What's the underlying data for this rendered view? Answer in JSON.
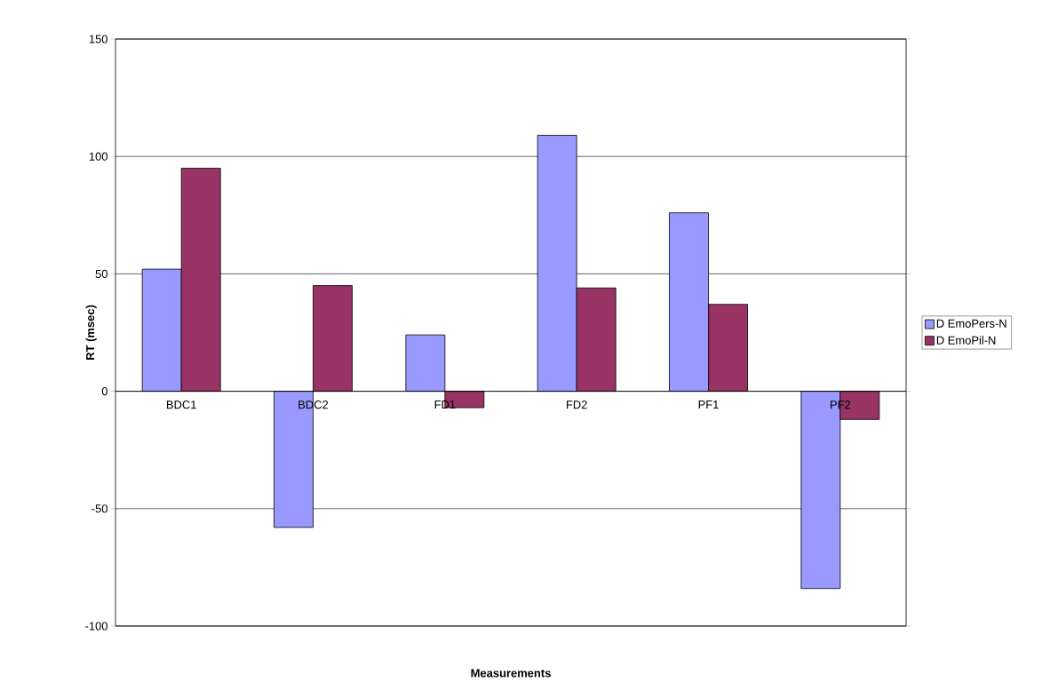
{
  "chart_data": {
    "type": "bar",
    "xlabel": "Measurements",
    "ylabel": "RT (msec)",
    "categories": [
      "BDC1",
      "BDC2",
      "FD1",
      "FD2",
      "PF1",
      "PF2"
    ],
    "series": [
      {
        "name": "D EmoPers-N",
        "color": "#9999ff",
        "values": [
          52,
          -58,
          24,
          109,
          76,
          -84
        ]
      },
      {
        "name": "D EmoPil-N",
        "color": "#993366",
        "values": [
          95,
          45,
          -7,
          44,
          37,
          -12
        ]
      }
    ],
    "ylim": [
      -100,
      150
    ],
    "yticks": [
      -100,
      -50,
      0,
      50,
      100,
      150
    ],
    "grid": "y",
    "legend": "right"
  }
}
